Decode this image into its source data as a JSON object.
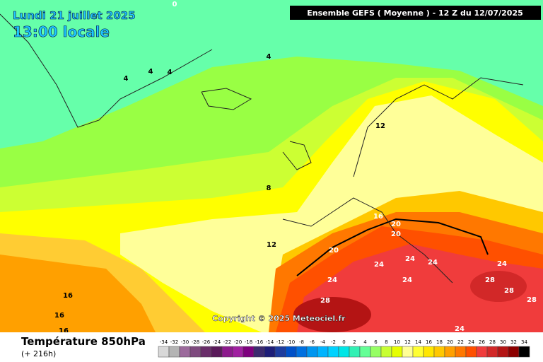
{
  "header": {
    "date": "Lundi 21 juillet 2025",
    "time": "13:00 locale",
    "model": "Ensemble GEFS  ( Moyenne )  -  12 Z du 12/07/2025"
  },
  "map": {
    "contour_labels": [
      0,
      4,
      4,
      4,
      4,
      12,
      8,
      12,
      16,
      20,
      20,
      20,
      24,
      24,
      24,
      24,
      24,
      24,
      28,
      28,
      28,
      28,
      16,
      16,
      16,
      24
    ],
    "copyright": "Copyright © 2025 Meteociel.fr"
  },
  "footer": {
    "title": "Température 850hPa",
    "lead": "(+ 216h)"
  },
  "scale": {
    "labels": [
      -34,
      -32,
      -30,
      -28,
      -26,
      -24,
      -22,
      -20,
      -18,
      -16,
      -14,
      -12,
      -10,
      -8,
      -6,
      -4,
      -2,
      0,
      2,
      4,
      6,
      8,
      10,
      12,
      14,
      16,
      18,
      20,
      22,
      24,
      26,
      28,
      30,
      32,
      34
    ],
    "colors": [
      "#d8d8d8",
      "#b4b4b4",
      "#9c6a9c",
      "#7e4a7e",
      "#6a2e6a",
      "#5a1a5a",
      "#8c1a8c",
      "#a020a0",
      "#7e007e",
      "#3c2a6e",
      "#1e1e78",
      "#1e3c9e",
      "#0050c8",
      "#0070e0",
      "#0096f0",
      "#00b4ff",
      "#00d2ff",
      "#00e6e6",
      "#32f0b4",
      "#64ff96",
      "#96ff64",
      "#c8ff32",
      "#e6ff00",
      "#ffff96",
      "#ffff32",
      "#ffe600",
      "#ffc800",
      "#ffa000",
      "#ff7800",
      "#ff5000",
      "#f03c3c",
      "#d22828",
      "#b41414",
      "#8c0000",
      "#000000"
    ]
  }
}
